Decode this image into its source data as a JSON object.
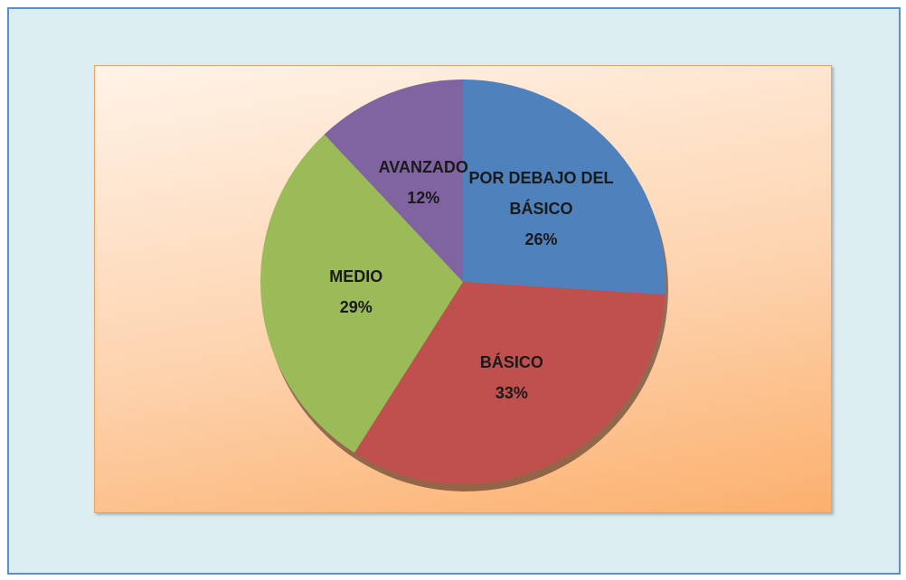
{
  "chart_data": {
    "type": "pie",
    "categories": [
      "POR DEBAJO DEL BÁSICO",
      "BÁSICO",
      "MEDIO",
      "AVANZADO"
    ],
    "values": [
      26,
      33,
      29,
      12
    ],
    "value_labels": [
      "26%",
      "33%",
      "29%",
      "12%"
    ],
    "colors": [
      "#4f81bd",
      "#c0504d",
      "#9bbb59",
      "#8064a2"
    ]
  }
}
